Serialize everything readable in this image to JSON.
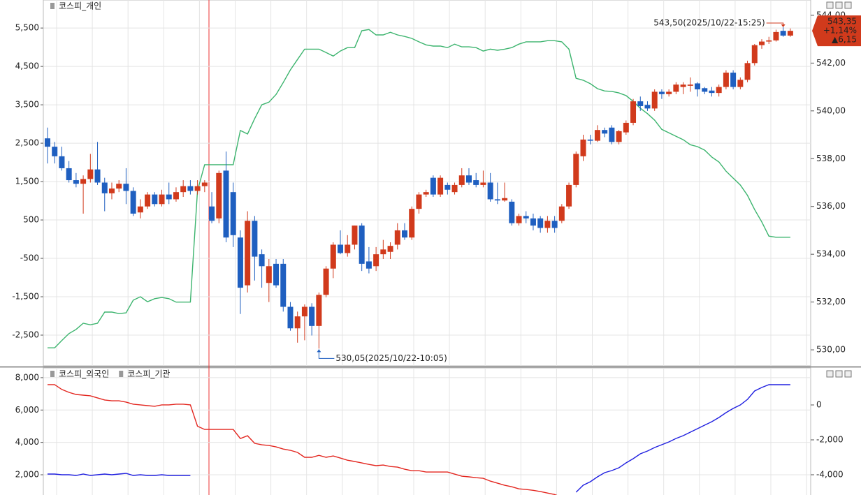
{
  "chart_data": [
    {
      "type": "candlestick",
      "series": [
        {
          "name": "코스피_개인",
          "color": "#3cb46e",
          "values": [
            -2830,
            -2830,
            -2640,
            -2460,
            -2350,
            -2190,
            -2230,
            -2190,
            -1900,
            -1900,
            -1940,
            -1920,
            -1590,
            -1500,
            -1630,
            -1550,
            -1520,
            -1550,
            -1640,
            -1640,
            -1640,
            1260,
            1940,
            1940,
            1940,
            1940,
            1940,
            2830,
            2740,
            3140,
            3500,
            3570,
            3770,
            4080,
            4410,
            4680,
            4950,
            4950,
            4950,
            4860,
            4770,
            4900,
            4990,
            4990,
            5430,
            5460,
            5320,
            5320,
            5390,
            5320,
            5280,
            5230,
            5140,
            5060,
            5030,
            5030,
            4990,
            5080,
            5010,
            5010,
            4990,
            4900,
            4950,
            4920,
            4950,
            4990,
            5080,
            5140,
            5140,
            5140,
            5170,
            5170,
            5140,
            4950,
            4190,
            4140,
            4050,
            3920,
            3860,
            3850,
            3810,
            3740,
            3590,
            3410,
            3270,
            3100,
            2860,
            2770,
            2680,
            2590,
            2460,
            2410,
            2320,
            2140,
            2010,
            1770,
            1590,
            1410,
            1140,
            770,
            450,
            80,
            50,
            50,
            50
          ]
        }
      ],
      "open": [
        538.85,
        538.5,
        538.1,
        537.6,
        537.1,
        536.95,
        537.15,
        537.55,
        537.0,
        536.55,
        536.75,
        536.95,
        536.65,
        535.75,
        536.0,
        536.5,
        536.1,
        536.5,
        536.3,
        536.6,
        536.85,
        536.65,
        536.85,
        536.0,
        535.5,
        537.5,
        536.6,
        534.7,
        532.7,
        535.4,
        534.0,
        532.8,
        533.6,
        533.6,
        531.8,
        530.9,
        531.4,
        531.8,
        531.0,
        532.3,
        533.4,
        534.4,
        534.05,
        534.4,
        535.2,
        533.7,
        533.5,
        534.0,
        534.1,
        534.4,
        535.0,
        534.7,
        535.9,
        536.5,
        537.2,
        536.5,
        536.9,
        536.6,
        536.9,
        537.3,
        537.1,
        536.9,
        537.0,
        536.3,
        536.25,
        536.2,
        535.3,
        535.6,
        535.5,
        535.5,
        535.1,
        535.4,
        535.4,
        536.0,
        536.9,
        538.1,
        538.8,
        538.75,
        539.2,
        539.3,
        538.7,
        539.1,
        539.5,
        540.4,
        540.25,
        540.1,
        540.8,
        540.7,
        540.8,
        541.0,
        541.05,
        541.15,
        540.95,
        540.85,
        540.75,
        541.0,
        541.6,
        541.0,
        541.3,
        542.0,
        542.75,
        542.9,
        542.95,
        543.35,
        543.15
      ],
      "high": [
        539.3,
        538.7,
        538.5,
        537.9,
        537.4,
        537.3,
        538.2,
        538.7,
        537.2,
        537.0,
        537.1,
        537.6,
        536.8,
        536.3,
        536.6,
        536.6,
        536.7,
        537.0,
        536.8,
        537.1,
        537.1,
        537.1,
        537.1,
        536.6,
        537.5,
        538.3,
        537.0,
        535.0,
        535.8,
        535.6,
        534.2,
        533.8,
        533.8,
        533.8,
        532.0,
        531.6,
        531.9,
        531.95,
        532.4,
        533.5,
        534.5,
        535.0,
        534.8,
        535.2,
        535.3,
        534.3,
        534.3,
        534.6,
        534.5,
        535.3,
        535.3,
        536.0,
        536.6,
        536.7,
        537.3,
        537.3,
        537.0,
        537.0,
        537.6,
        537.6,
        537.4,
        537.5,
        537.4,
        537.0,
        537.0,
        536.3,
        535.7,
        535.8,
        535.7,
        535.6,
        535.6,
        535.6,
        536.1,
        537.0,
        538.3,
        539.0,
        539.0,
        539.4,
        539.3,
        539.4,
        539.2,
        539.6,
        540.5,
        540.6,
        540.4,
        540.9,
        540.9,
        540.9,
        541.2,
        541.2,
        541.4,
        541.2,
        541.0,
        541.0,
        541.1,
        541.7,
        541.7,
        541.4,
        542.1,
        542.8,
        543.0,
        543.1,
        543.4,
        543.5,
        543.45
      ],
      "low": [
        537.8,
        537.8,
        537.5,
        537.0,
        536.8,
        535.7,
        537.0,
        536.9,
        535.8,
        536.3,
        536.6,
        536.1,
        535.6,
        535.5,
        535.9,
        536.0,
        536.0,
        536.1,
        536.2,
        536.4,
        536.5,
        536.5,
        536.6,
        535.3,
        535.3,
        534.5,
        534.3,
        531.5,
        532.4,
        532.9,
        532.6,
        532.0,
        532.6,
        531.6,
        530.8,
        530.3,
        530.4,
        530.6,
        530.05,
        532.2,
        533.0,
        534.0,
        533.9,
        534.2,
        533.3,
        533.2,
        533.3,
        533.8,
        533.8,
        534.2,
        534.6,
        534.6,
        535.7,
        536.4,
        536.4,
        536.4,
        536.5,
        536.5,
        536.8,
        536.9,
        536.8,
        536.8,
        536.2,
        536.1,
        536.2,
        535.2,
        535.2,
        535.3,
        535.0,
        534.9,
        534.9,
        534.9,
        535.3,
        535.9,
        536.8,
        537.9,
        538.6,
        538.7,
        538.9,
        538.6,
        538.6,
        539.0,
        539.4,
        540.0,
        540.0,
        540.0,
        540.5,
        540.6,
        540.7,
        540.7,
        540.8,
        540.6,
        540.7,
        540.6,
        540.6,
        540.9,
        540.9,
        540.9,
        541.2,
        541.9,
        542.6,
        542.8,
        542.9,
        543.1,
        543.1
      ],
      "close": [
        538.5,
        538.1,
        537.6,
        537.1,
        536.95,
        537.15,
        537.55,
        537.0,
        536.55,
        536.75,
        536.95,
        536.65,
        535.7,
        536.0,
        536.5,
        536.1,
        536.5,
        536.3,
        536.6,
        536.85,
        536.65,
        536.85,
        537.0,
        535.4,
        537.4,
        534.7,
        534.8,
        532.6,
        535.4,
        533.9,
        533.5,
        533.5,
        532.7,
        531.8,
        530.9,
        531.4,
        531.8,
        531.0,
        532.3,
        533.4,
        534.4,
        534.05,
        534.4,
        535.2,
        533.6,
        533.4,
        534.0,
        534.2,
        534.35,
        535.0,
        534.7,
        535.9,
        536.5,
        536.6,
        536.5,
        537.2,
        536.7,
        536.9,
        537.3,
        537.0,
        536.9,
        537.0,
        536.3,
        536.25,
        536.35,
        535.3,
        535.6,
        535.5,
        535.2,
        535.1,
        535.4,
        535.1,
        536.0,
        536.9,
        538.2,
        538.8,
        538.75,
        539.2,
        539.05,
        538.7,
        539.15,
        539.5,
        540.4,
        540.2,
        540.1,
        540.8,
        540.7,
        540.8,
        541.1,
        541.1,
        541.1,
        540.9,
        540.8,
        540.75,
        541.0,
        541.6,
        541.0,
        541.3,
        542.0,
        542.75,
        542.9,
        542.95,
        543.3,
        543.15,
        543.35
      ],
      "up_color": "#d13a1c",
      "down_color": "#1f5fc0",
      "ylim": [
        -3300,
        6230
      ],
      "yticks": [
        {
          "value": 5500,
          "label": "5,500"
        },
        {
          "value": 4500,
          "label": "4,500"
        },
        {
          "value": 3500,
          "label": "3,500"
        },
        {
          "value": 2500,
          "label": "2,500"
        },
        {
          "value": 1500,
          "label": "1,500"
        },
        500,
        -500,
        {
          "value": -1500,
          "label": "-1,500"
        },
        {
          "value": -2500,
          "label": "-2,500"
        }
      ],
      "y2lim": [
        529.33,
        544.64
      ],
      "y2ticks": [
        {
          "value": 544,
          "label": "544,00"
        },
        {
          "value": 542,
          "label": "542,00"
        },
        {
          "value": 540,
          "label": "540,00"
        },
        {
          "value": 538,
          "label": "538,00"
        },
        {
          "value": 536,
          "label": "536,00"
        },
        {
          "value": 534,
          "label": "534,00"
        },
        {
          "value": 532,
          "label": "532,00"
        },
        {
          "value": 530,
          "label": "530,00"
        }
      ],
      "max_label": "543,50(2025/10/22-15:25)",
      "min_label": "530,05(2025/10/22-10:05)",
      "last_label": "543,35",
      "change_pct": "+1,14%",
      "change": "▲6,15",
      "grid": true
    },
    {
      "type": "line",
      "series": [
        {
          "name": "코스피_외국인",
          "color": "#e3261f",
          "values": [
            7570,
            7570,
            7270,
            7090,
            6960,
            6920,
            6880,
            6750,
            6620,
            6570,
            6570,
            6490,
            6360,
            6320,
            6270,
            6230,
            6320,
            6320,
            6360,
            6360,
            6320,
            5000,
            4800,
            4800,
            4800,
            4800,
            4800,
            4240,
            4410,
            3940,
            3850,
            3810,
            3720,
            3590,
            3510,
            3380,
            3080,
            3080,
            3200,
            3080,
            3160,
            3030,
            2900,
            2820,
            2730,
            2640,
            2560,
            2600,
            2510,
            2470,
            2340,
            2250,
            2250,
            2170,
            2170,
            2170,
            2170,
            2040,
            1910,
            1870,
            1820,
            1780,
            1610,
            1480,
            1350,
            1260,
            1130,
            1090,
            1040,
            960,
            870,
            780,
            610,
            null,
            null,
            null,
            null,
            null,
            null,
            null,
            null,
            null,
            null,
            null,
            null,
            null,
            null,
            null,
            null,
            null,
            null,
            null,
            null,
            null,
            null,
            null,
            null,
            null,
            null,
            null,
            null,
            null,
            null,
            null,
            null
          ]
        },
        {
          "name": "코스피_기관",
          "color": "#2020e0",
          "axis": "y2",
          "values": [
            -3960,
            -3960,
            -4000,
            -4000,
            -4040,
            -3960,
            -4040,
            -4000,
            -3960,
            -4000,
            -3960,
            -3920,
            -4040,
            -4000,
            -4040,
            -4040,
            -4000,
            -4040,
            -4040,
            -4040,
            -4040,
            null,
            null,
            null,
            null,
            null,
            null,
            null,
            null,
            null,
            null,
            null,
            null,
            null,
            null,
            null,
            null,
            null,
            null,
            null,
            null,
            null,
            null,
            null,
            null,
            null,
            null,
            null,
            null,
            null,
            null,
            null,
            null,
            null,
            null,
            null,
            null,
            null,
            null,
            null,
            null,
            null,
            null,
            null,
            null,
            null,
            null,
            null,
            null,
            null,
            null,
            null,
            null,
            null,
            -5000,
            -4600,
            -4400,
            -4120,
            -3880,
            -3760,
            -3600,
            -3320,
            -3080,
            -2800,
            -2640,
            -2440,
            -2280,
            -2120,
            -1920,
            -1760,
            -1560,
            -1360,
            -1160,
            -960,
            -720,
            -440,
            -200,
            0,
            320,
            800,
            1000,
            1160,
            1160,
            1160,
            1160
          ]
        }
      ],
      "ylim": [
        750,
        8600
      ],
      "yticks": [
        {
          "value": 8000,
          "label": "8,000"
        },
        {
          "value": 6000,
          "label": "6,000"
        },
        {
          "value": 4000,
          "label": "4,000"
        },
        {
          "value": 2000,
          "label": "2,000"
        }
      ],
      "y2lim": [
        -5160,
        2120
      ],
      "y2ticks": [
        0,
        {
          "value": -2000,
          "label": "-2,000"
        },
        {
          "value": -4000,
          "label": "-4,000"
        }
      ],
      "grid": true
    }
  ]
}
